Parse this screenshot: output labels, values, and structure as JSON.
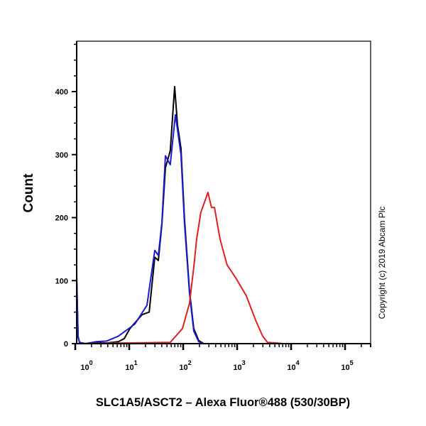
{
  "chart_data": {
    "type": "line",
    "title": "",
    "xlabel": "SLC1A5/ASCT2 – Alexa Fluor®488 (530/30BP)",
    "ylabel": "Count",
    "x_scale": "log",
    "xlim": [
      1,
      300000
    ],
    "ylim": [
      0,
      480
    ],
    "x_ticks": [
      {
        "value": 1,
        "base": "10",
        "exp": "0"
      },
      {
        "value": 10,
        "base": "10",
        "exp": "1"
      },
      {
        "value": 100,
        "base": "10",
        "exp": "2"
      },
      {
        "value": 1000,
        "base": "10",
        "exp": "3"
      },
      {
        "value": 10000,
        "base": "10",
        "exp": "4"
      },
      {
        "value": 100000,
        "base": "10",
        "exp": "5"
      }
    ],
    "y_ticks": [
      0,
      100,
      200,
      300,
      400
    ],
    "grid": false,
    "legend": "none",
    "annotation": "Copyright (c) 2019 Abcam Plc",
    "series": [
      {
        "color": "#000000",
        "points": [
          [
            1.06,
            105
          ],
          [
            1.13,
            10
          ],
          [
            1.2,
            2
          ],
          [
            1.53,
            0
          ],
          [
            2.4,
            2
          ],
          [
            3.8,
            1
          ],
          [
            6.3,
            3
          ],
          [
            8.1,
            8
          ],
          [
            10.3,
            24
          ],
          [
            17.3,
            46
          ],
          [
            23.4,
            50
          ],
          [
            29.8,
            137
          ],
          [
            34.6,
            132
          ],
          [
            40.3,
            189
          ],
          [
            46.9,
            279
          ],
          [
            57.7,
            306
          ],
          [
            69.5,
            408
          ],
          [
            78.5,
            347
          ],
          [
            91,
            310
          ],
          [
            106,
            197
          ],
          [
            131,
            84
          ],
          [
            157,
            24
          ],
          [
            194,
            5
          ],
          [
            240,
            0
          ],
          [
            300000,
            0
          ]
        ]
      },
      {
        "color": "#1a1ad0",
        "points": [
          [
            1.06,
            116
          ],
          [
            1.13,
            12
          ],
          [
            1.2,
            2
          ],
          [
            1.53,
            0
          ],
          [
            2.4,
            3
          ],
          [
            3.8,
            4
          ],
          [
            6.3,
            12
          ],
          [
            12.7,
            31
          ],
          [
            21.3,
            61
          ],
          [
            29.8,
            148
          ],
          [
            34.6,
            140
          ],
          [
            40.3,
            192
          ],
          [
            46.9,
            298
          ],
          [
            57.7,
            284
          ],
          [
            71.6,
            363
          ],
          [
            78.5,
            340
          ],
          [
            91,
            300
          ],
          [
            106,
            190
          ],
          [
            131,
            80
          ],
          [
            157,
            20
          ],
          [
            194,
            3
          ],
          [
            240,
            0
          ],
          [
            300000,
            0
          ]
        ]
      },
      {
        "color": "#e02020",
        "points": [
          [
            1.06,
            0
          ],
          [
            57.7,
            2
          ],
          [
            97,
            24
          ],
          [
            131,
            64
          ],
          [
            157,
            121
          ],
          [
            178,
            166
          ],
          [
            212,
            208
          ],
          [
            288,
            240
          ],
          [
            335,
            216
          ],
          [
            380,
            216
          ],
          [
            482,
            166
          ],
          [
            651,
            125
          ],
          [
            965,
            103
          ],
          [
            1477,
            76
          ],
          [
            2188,
            38
          ],
          [
            2964,
            12
          ],
          [
            3653,
            2
          ],
          [
            7400,
            0
          ],
          [
            300000,
            0
          ]
        ]
      }
    ]
  }
}
